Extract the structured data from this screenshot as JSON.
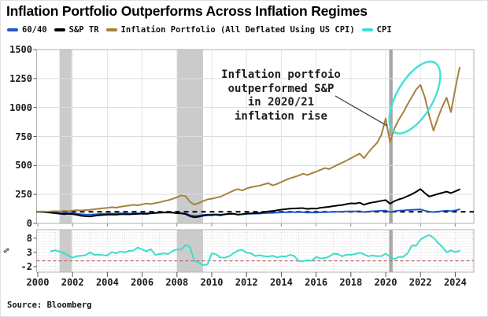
{
  "title": "Inflation Portfolio Outperforms Across Inflation Regimes",
  "source": "Source: Bloomberg",
  "annotation": {
    "lines": [
      "Inflation portfoio",
      "outperformed S&P",
      "in 2020/21",
      "inflation rise"
    ]
  },
  "legend": {
    "items": [
      {
        "label": "60/40",
        "color": "#2257c4"
      },
      {
        "label": "S&P TR",
        "color": "#000000"
      },
      {
        "label": "Inflation Portfolio (All Deflated Using US CPI)",
        "color": "#a7813e"
      },
      {
        "label": "CPI",
        "color": "#3fdcce"
      }
    ]
  },
  "colors": {
    "grid": "#dcdcdc",
    "grid_vertical": "#e4e4e4",
    "frame": "#b2b2b2",
    "recession_band": "#cbcbcb",
    "covid_band": "#a6a6a6",
    "minor_dots": "#d2d2d2",
    "zero_dash": "#bb6666",
    "ellipse": "#3fe3d4",
    "connector": "#4a4a4a",
    "ref_dash": "#000000"
  },
  "chart_data": [
    {
      "type": "line",
      "panel": "main",
      "x_start": 2000.0,
      "x_step": 0.25,
      "xlim": [
        1999.9,
        2025.05
      ],
      "ylim": [
        0,
        1500
      ],
      "yticks": [
        0,
        250,
        500,
        750,
        1000,
        1250,
        1500
      ],
      "xticks": [
        2000,
        2002,
        2004,
        2006,
        2008,
        2010,
        2012,
        2014,
        2016,
        2018,
        2020,
        2022,
        2024
      ],
      "grid": true,
      "legend_position": "top",
      "ref_line": {
        "y": 100,
        "style": "dashed",
        "color": "#000000"
      },
      "recession_bands": [
        {
          "from": 2001.25,
          "to": 2001.95,
          "color": "#cbcbcb"
        },
        {
          "from": 2008.0,
          "to": 2009.5,
          "color": "#cbcbcb"
        },
        {
          "from": 2020.2,
          "to": 2020.4,
          "color": "#a6a6a6"
        }
      ],
      "series": [
        {
          "name": "60/40",
          "color": "#2257c4",
          "values": [
            100,
            99,
            98,
            95,
            93,
            90,
            87,
            89,
            88,
            84,
            79,
            77,
            75,
            78,
            81,
            83,
            84,
            85,
            84,
            86,
            86,
            85,
            87,
            87,
            88,
            87,
            89,
            91,
            92,
            94,
            93,
            92,
            89,
            88,
            84,
            71,
            65,
            68,
            73,
            76,
            76,
            78,
            75,
            80,
            81,
            82,
            77,
            79,
            82,
            83,
            84,
            85,
            88,
            90,
            91,
            93,
            95,
            96,
            97,
            97,
            97,
            97,
            93,
            95,
            94,
            96,
            97,
            98,
            99,
            100,
            101,
            103,
            104,
            103,
            105,
            97,
            102,
            105,
            107,
            109,
            110,
            97,
            105,
            110,
            112,
            115,
            117,
            119,
            121,
            110,
            101,
            98,
            102,
            106,
            110,
            106,
            112,
            121
          ]
        },
        {
          "name": "S&P TR",
          "color": "#000000",
          "values": [
            100,
            99,
            96,
            92,
            88,
            84,
            80,
            83,
            80,
            74,
            65,
            62,
            60,
            65,
            69,
            73,
            75,
            76,
            75,
            79,
            79,
            78,
            81,
            82,
            84,
            82,
            86,
            90,
            92,
            95,
            96,
            94,
            88,
            86,
            80,
            62,
            53,
            58,
            66,
            71,
            71,
            75,
            70,
            78,
            82,
            84,
            75,
            79,
            85,
            87,
            89,
            91,
            97,
            103,
            107,
            113,
            119,
            123,
            127,
            129,
            131,
            132,
            125,
            129,
            127,
            135,
            139,
            143,
            149,
            154,
            159,
            166,
            173,
            171,
            179,
            161,
            173,
            181,
            187,
            195,
            201,
            170,
            192,
            207,
            218,
            235,
            252,
            272,
            296,
            262,
            232,
            242,
            254,
            264,
            274,
            261,
            277,
            293
          ]
        },
        {
          "name": "Inflation Portfolio (All Deflated Using US CPI)",
          "color": "#a7813e",
          "values": [
            100,
            103,
            101,
            104,
            106,
            104,
            108,
            107,
            110,
            114,
            111,
            115,
            118,
            122,
            126,
            130,
            134,
            140,
            136,
            143,
            149,
            154,
            160,
            156,
            164,
            172,
            167,
            175,
            182,
            192,
            200,
            212,
            225,
            242,
            235,
            185,
            163,
            175,
            192,
            207,
            213,
            222,
            230,
            248,
            265,
            283,
            296,
            284,
            301,
            312,
            319,
            326,
            337,
            347,
            328,
            341,
            357,
            374,
            389,
            401,
            413,
            429,
            417,
            433,
            446,
            462,
            477,
            469,
            489,
            507,
            524,
            542,
            562,
            583,
            602,
            563,
            612,
            655,
            695,
            763,
            905,
            700,
            820,
            895,
            955,
            1025,
            1090,
            1155,
            1195,
            1090,
            930,
            800,
            910,
            1005,
            1085,
            960,
            1160,
            1345
          ]
        }
      ]
    },
    {
      "type": "line",
      "panel": "lower",
      "ylabel": "%",
      "x_start": 2000.75,
      "x_step": 0.25,
      "xlim": [
        1999.9,
        2025.05
      ],
      "ylim": [
        -4,
        11
      ],
      "yticks": [
        -2,
        3,
        8
      ],
      "grid": "dotted-minor",
      "ref_line": {
        "y": 0,
        "style": "dashed",
        "color": "#bb6666"
      },
      "recession_bands": [
        {
          "from": 2001.25,
          "to": 2001.95,
          "color": "#cbcbcb"
        },
        {
          "from": 2008.0,
          "to": 2009.5,
          "color": "#cbcbcb"
        },
        {
          "from": 2020.2,
          "to": 2020.4,
          "color": "#a6a6a6"
        }
      ],
      "series": [
        {
          "name": "CPI",
          "color": "#3fdcce",
          "values": [
            3.4,
            3.7,
            3.3,
            2.7,
            1.9,
            1.1,
            1.6,
            1.8,
            2.0,
            3.0,
            2.1,
            2.2,
            2.0,
            1.9,
            3.1,
            2.7,
            3.3,
            3.0,
            3.5,
            3.6,
            4.7,
            4.0,
            3.4,
            4.1,
            2.1,
            2.4,
            2.6,
            2.4,
            3.5,
            4.0,
            4.0,
            5.6,
            4.9,
            0.0,
            -0.7,
            -1.5,
            -1.3,
            2.6,
            2.3,
            1.2,
            1.1,
            1.6,
            2.7,
            3.6,
            3.9,
            2.9,
            2.7,
            1.7,
            2.0,
            1.6,
            1.5,
            1.8,
            1.2,
            1.6,
            1.5,
            2.1,
            1.7,
            -0.1,
            -0.1,
            0.2,
            0.0,
            1.4,
            0.9,
            1.0,
            1.5,
            2.5,
            2.4,
            1.6,
            2.2,
            2.1,
            2.4,
            2.9,
            2.3,
            1.6,
            1.9,
            1.6,
            1.7,
            2.5,
            1.5,
            0.6,
            1.4,
            1.4,
            2.6,
            5.4,
            5.4,
            7.5,
            8.5,
            9.1,
            8.2,
            6.4,
            5.0,
            3.0,
            3.7,
            3.1,
            3.5
          ]
        }
      ]
    }
  ]
}
